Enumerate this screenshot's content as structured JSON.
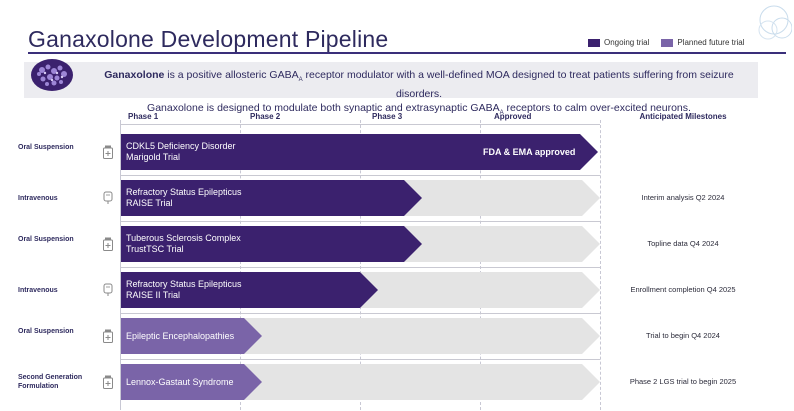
{
  "header": {
    "title": "Ganaxolone Development Pipeline",
    "legend": [
      {
        "label": "Ongoing trial",
        "color": "#3b216e"
      },
      {
        "label": "Planned future trial",
        "color": "#7a64a8"
      }
    ]
  },
  "intro": {
    "drug_name": "Ganaxolone",
    "line1_rest": " is a positive allosteric GABA",
    "line1_sub": "A",
    "line1_end": " receptor modulator with a well-defined MOA designed to treat patients suffering from seizure disorders.",
    "line2_start": "Ganaxolone is designed to modulate both synaptic and extrasynaptic GABA",
    "line2_sub": "A",
    "line2_end": " receptors to calm over-excited neurons."
  },
  "columns": {
    "phase1": "Phase 1",
    "phase2": "Phase 2",
    "phase3": "Phase 3",
    "approved": "Approved",
    "milestones": "Anticipated Milestones"
  },
  "colors": {
    "ongoing": "#3b216e",
    "planned": "#7a64a8",
    "track": "#e4e4e4"
  },
  "rows": [
    {
      "route": "Oral Suspension",
      "icon": "bottle-icon",
      "name1": "CDKL5 Deficiency Disorder",
      "name2": "Marigold Trial",
      "status": "ongoing",
      "progress_stage": "approved",
      "approved_label": "FDA & EMA approved",
      "milestone": ""
    },
    {
      "route": "Intravenous",
      "icon": "iv-bag-icon",
      "name1": "Refractory Status Epilepticus",
      "name2": "RAISE Trial",
      "status": "ongoing",
      "progress_stage": "phase3",
      "milestone": "Interim analysis Q2 2024"
    },
    {
      "route": "Oral Suspension",
      "icon": "bottle-icon",
      "name1": "Tuberous Sclerosis Complex",
      "name2": "TrustTSC Trial",
      "status": "ongoing",
      "progress_stage": "phase3",
      "milestone": "Topline data Q4 2024"
    },
    {
      "route": "Intravenous",
      "icon": "iv-bag-icon",
      "name1": "Refractory Status Epilepticus",
      "name2": "RAISE II Trial",
      "status": "ongoing",
      "progress_stage": "phase2-3",
      "milestone": "Enrollment completion Q4 2025"
    },
    {
      "route": "Oral Suspension",
      "icon": "bottle-icon",
      "name1": "Epileptic Encephalopathies",
      "name2": "",
      "status": "planned",
      "progress_stage": "phase1",
      "milestone": "Trial to begin Q4 2024"
    },
    {
      "route": "Second Generation Formulation",
      "icon": "bottle-icon",
      "name1": "Lennox-Gastaut Syndrome",
      "name2": "",
      "status": "planned",
      "progress_stage": "phase1",
      "milestone": "Phase 2 LGS trial to begin 2025"
    }
  ]
}
